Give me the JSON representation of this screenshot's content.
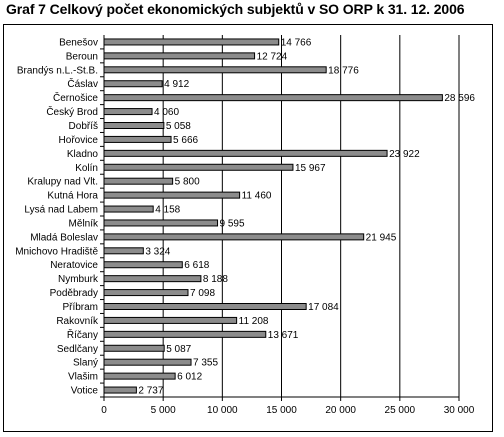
{
  "title": "Graf 7 Celkový počet ekonomických subjektů v SO ORP k 31. 12. 2006",
  "colors": {
    "bar": "#8c8c8c",
    "bar_stroke": "#000000",
    "plot_bg": "#ffffff",
    "grid": "#000000"
  },
  "chart_data": {
    "type": "bar",
    "orientation": "horizontal",
    "title": "Graf 7 Celkový počet ekonomických subjektů v SO ORP k 31. 12. 2006",
    "xlabel": "",
    "ylabel": "",
    "xlim": [
      0,
      30000
    ],
    "x_ticks": [
      0,
      5000,
      10000,
      15000,
      20000,
      25000,
      30000
    ],
    "x_tick_labels": [
      "0",
      "5 000",
      "10 000",
      "15 000",
      "20 000",
      "25 000",
      "30 000"
    ],
    "grid": true,
    "legend": "none",
    "categories": [
      "Benešov",
      "Beroun",
      "Brandýs n.L.-St.B.",
      "Čáslav",
      "Černošice",
      "Český Brod",
      "Dobříš",
      "Hořovice",
      "Kladno",
      "Kolín",
      "Kralupy nad Vlt.",
      "Kutná Hora",
      "Lysá nad Labem",
      "Mělník",
      "Mladá Boleslav",
      "Mnichovo Hradiště",
      "Neratovice",
      "Nymburk",
      "Poděbrady",
      "Příbram",
      "Rakovník",
      "Říčany",
      "Sedlčany",
      "Slaný",
      "Vlašim",
      "Votice"
    ],
    "values": [
      14766,
      12724,
      18776,
      4912,
      28596,
      4060,
      5058,
      5666,
      23922,
      15967,
      5800,
      11460,
      4158,
      9595,
      21945,
      3324,
      6618,
      8188,
      7098,
      17084,
      11208,
      13671,
      5087,
      7355,
      6012,
      2737
    ],
    "data_labels": [
      "14 766",
      "12 724",
      "18 776",
      "4 912",
      "28 596",
      "4 060",
      "5 058",
      "5 666",
      "23 922",
      "15 967",
      "5 800",
      "11 460",
      "4 158",
      "9 595",
      "21 945",
      "3 324",
      "6 618",
      "8 188",
      "7 098",
      "17 084",
      "11 208",
      "13 671",
      "5 087",
      "7 355",
      "6 012",
      "2 737"
    ]
  }
}
